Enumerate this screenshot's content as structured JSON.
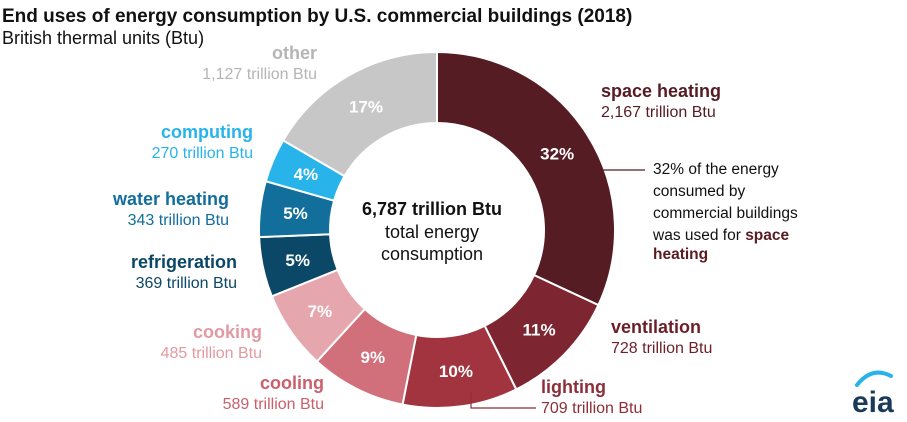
{
  "chart_data": {
    "type": "pie",
    "title": "End uses of energy consumption by U.S. commercial buildings (2018)",
    "subtitle": "British thermal units (Btu)",
    "center": {
      "total": "6,787 trillion Btu",
      "line1": "total energy",
      "line2": "consumption"
    },
    "slices": [
      {
        "name": "space heating",
        "value": 2167,
        "value_label": "2,167 trillion Btu",
        "percent": 32,
        "percent_label": "32%",
        "color": "#561c24",
        "label_color": "#561c24"
      },
      {
        "name": "ventilation",
        "value": 728,
        "value_label": "728 trillion Btu",
        "percent": 11,
        "percent_label": "11%",
        "color": "#7d2530",
        "label_color": "#6b1f29"
      },
      {
        "name": "lighting",
        "value": 709,
        "value_label": "709 trillion Btu",
        "percent": 10,
        "percent_label": "10%",
        "color": "#a1343f",
        "label_color": "#8e2e38"
      },
      {
        "name": "cooling",
        "value": 589,
        "value_label": "589 trillion Btu",
        "percent": 9,
        "percent_label": "9%",
        "color": "#d1707a",
        "label_color": "#c9606b"
      },
      {
        "name": "cooking",
        "value": 485,
        "value_label": "485 trillion Btu",
        "percent": 7,
        "percent_label": "7%",
        "color": "#e5a7ad",
        "label_color": "#e29aa2"
      },
      {
        "name": "refrigeration",
        "value": 369,
        "value_label": "369 trillion Btu",
        "percent": 5,
        "percent_label": "5%",
        "color": "#0b4766",
        "label_color": "#0b4766"
      },
      {
        "name": "water heating",
        "value": 343,
        "value_label": "343 trillion Btu",
        "percent": 5,
        "percent_label": "5%",
        "color": "#126e9b",
        "label_color": "#126e9b"
      },
      {
        "name": "computing",
        "value": 270,
        "value_label": "270 trillion Btu",
        "percent": 4,
        "percent_label": "4%",
        "color": "#28b4ea",
        "label_color": "#28b4ea"
      },
      {
        "name": "other",
        "value": 1127,
        "value_label": "1,127 trillion Btu",
        "percent": 17,
        "percent_label": "17%",
        "color": "#c7c7c7",
        "label_color": "#b5b5b5"
      }
    ],
    "annotation": {
      "lines": [
        "32% of the energy",
        "consumed by",
        "commercial buildings",
        "was used for "
      ],
      "emphasis_1": "space",
      "emphasis_2": "heating"
    },
    "logo_text": "eia"
  }
}
